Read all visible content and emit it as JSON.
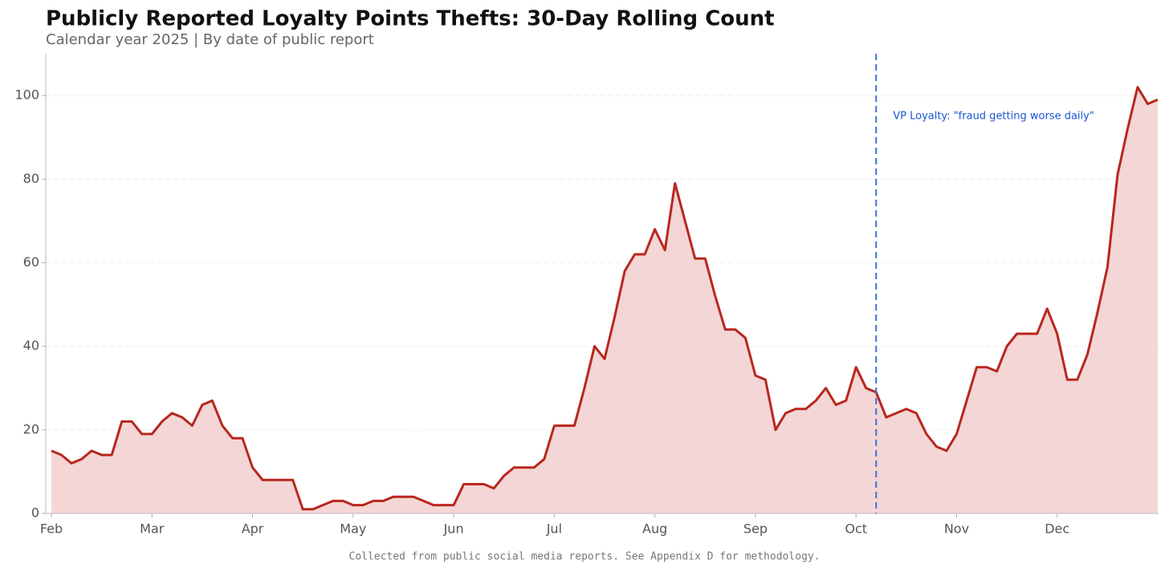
{
  "chart_data": {
    "type": "line",
    "title": "Publicly Reported Loyalty Points Thefts: 30-Day Rolling Count",
    "subtitle": "Calendar year 2025 | By date of public report",
    "footnote": "Collected from public social media reports. See Appendix D for methodology.",
    "categories": [
      "Feb",
      null,
      null,
      null,
      null,
      null,
      null,
      null,
      null,
      null,
      "Mar",
      null,
      null,
      null,
      null,
      null,
      null,
      null,
      null,
      null,
      "Apr",
      null,
      null,
      null,
      null,
      null,
      null,
      null,
      null,
      null,
      "May",
      null,
      null,
      null,
      null,
      null,
      null,
      null,
      null,
      null,
      "Jun",
      null,
      null,
      null,
      null,
      null,
      null,
      null,
      null,
      null,
      "Jul",
      null,
      null,
      null,
      null,
      null,
      null,
      null,
      null,
      null,
      "Aug",
      null,
      null,
      null,
      null,
      null,
      null,
      null,
      null,
      null,
      "Sep",
      null,
      null,
      null,
      null,
      null,
      null,
      null,
      null,
      null,
      "Oct",
      null,
      null,
      null,
      null,
      null,
      null,
      null,
      null,
      null,
      "Nov",
      null,
      null,
      null,
      null,
      null,
      null,
      null,
      null,
      null,
      "Dec",
      null,
      null,
      null,
      null,
      null,
      null,
      null,
      null,
      null,
      null
    ],
    "series": [
      {
        "name": "30-Day Rolling Count",
        "color": "#b8271e",
        "fill": "#f3d6d5",
        "values": [
          15,
          14,
          12,
          13,
          15,
          14,
          14,
          22,
          22,
          19,
          19,
          22,
          24,
          23,
          21,
          26,
          27,
          21,
          18,
          18,
          11,
          8,
          8,
          8,
          8,
          1,
          1,
          2,
          3,
          3,
          2,
          2,
          3,
          3,
          4,
          4,
          4,
          3,
          2,
          2,
          2,
          7,
          7,
          7,
          6,
          9,
          11,
          11,
          11,
          13,
          21,
          21,
          21,
          30,
          40,
          37,
          47,
          58,
          62,
          62,
          68,
          63,
          79,
          70,
          61,
          61,
          52,
          44,
          44,
          42,
          33,
          32,
          20,
          24,
          25,
          25,
          27,
          30,
          26,
          27,
          35,
          30,
          29,
          23,
          24,
          25,
          24,
          19,
          16,
          15,
          19,
          27,
          35,
          35,
          34,
          40,
          43,
          43,
          43,
          49,
          43,
          32,
          32,
          38,
          48,
          59,
          81,
          92,
          102,
          98,
          99
        ]
      }
    ],
    "annotation": {
      "text": "VP Loyalty: \"fraud getting worse daily\"",
      "x": 82,
      "color": "#3b6fe0"
    },
    "ylim": [
      0,
      110
    ],
    "yticks": [
      0,
      20,
      40,
      60,
      80,
      100
    ],
    "grid": true
  }
}
